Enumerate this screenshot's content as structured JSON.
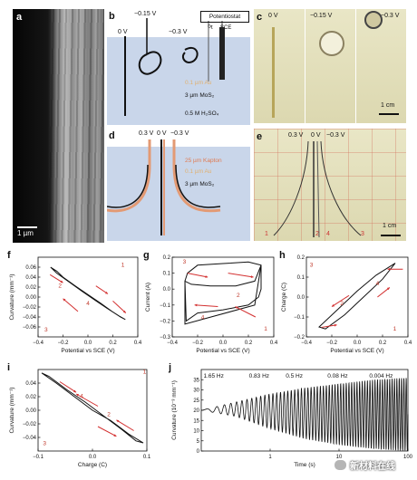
{
  "panels": {
    "a": {
      "label": "a",
      "scalebar": "1 µm"
    },
    "b": {
      "label": "b",
      "v0": "0 V",
      "v1": "−0.15 V",
      "v2": "−0.3 V",
      "potentiostat": "Potentiostat",
      "pt": "Pt",
      "sce": "SCE",
      "au": "0.1 µm Au",
      "mos2": "3 µm MoS₂",
      "electrolyte": "0.5 M H₂SO₄"
    },
    "c": {
      "label": "c",
      "v0": "0 V",
      "v1": "−0.15 V",
      "v2": "−0.3 V",
      "scalebar": "1 cm"
    },
    "d": {
      "label": "d",
      "v1": "0.3 V",
      "v0": "0 V",
      "v2": "−0.3 V",
      "kapton": "25 µm Kapton",
      "au": "0.1 µm Au",
      "mos2": "3 µm MoS₂"
    },
    "e": {
      "label": "e",
      "v1": "0.3 V",
      "v0": "0 V",
      "v2": "−0.3 V",
      "n1": "1",
      "n2": "2",
      "n4": "4",
      "n3": "3",
      "scalebar": "1 cm"
    },
    "f": {
      "label": "f"
    },
    "g": {
      "label": "g"
    },
    "h": {
      "label": "h"
    },
    "i": {
      "label": "i"
    },
    "j": {
      "label": "j"
    }
  },
  "chart_data": [
    {
      "id": "f",
      "type": "line",
      "title": "",
      "xlabel": "Potential vs SCE (V)",
      "ylabel": "Curvature (mm⁻¹)",
      "xlim": [
        -0.4,
        0.4
      ],
      "ylim": [
        -0.08,
        0.08
      ],
      "xticks": [
        "−0.4",
        "−0.2",
        "0.0",
        "0.2",
        "0.4"
      ],
      "yticks": [
        "0.06",
        "0.04",
        "0.02",
        "0.00",
        "−0.02",
        "−0.04",
        "−0.06"
      ],
      "x": [
        -0.3,
        -0.25,
        -0.2,
        -0.1,
        0,
        0.1,
        0.2,
        0.26,
        0.3,
        0.25,
        0.15,
        0.05,
        -0.05,
        -0.15,
        -0.25,
        -0.3
      ],
      "y": [
        0.06,
        0.052,
        0.04,
        0.022,
        0.005,
        -0.012,
        -0.03,
        -0.04,
        -0.045,
        -0.038,
        -0.022,
        -0.005,
        0.012,
        0.03,
        0.048,
        0.06
      ],
      "annotations": [
        "1",
        "2",
        "3",
        "4"
      ]
    },
    {
      "id": "g",
      "type": "line",
      "title": "",
      "xlabel": "Potential vs SCE (V)",
      "ylabel": "Current (A)",
      "xlim": [
        -0.4,
        0.4
      ],
      "ylim": [
        -0.3,
        0.2
      ],
      "xticks": [
        "−0.4",
        "−0.2",
        "0.0",
        "0.2",
        "0.4"
      ],
      "yticks": [
        "0.2",
        "0.1",
        "0.0",
        "−0.1",
        "−0.2",
        "−0.3"
      ],
      "x": [
        0.3,
        0.25,
        0.1,
        -0.1,
        -0.25,
        -0.3,
        -0.29,
        -0.2,
        0,
        0.2,
        0.28,
        0.3,
        0.3,
        0.2,
        0,
        -0.2,
        -0.28,
        -0.3,
        -0.3,
        0.25,
        0.3
      ],
      "y": [
        0.15,
        0.05,
        0.02,
        0.02,
        0.03,
        0.05,
        -0.2,
        -0.15,
        -0.13,
        -0.1,
        -0.05,
        0.0,
        0.15,
        0.17,
        0.16,
        0.15,
        0.1,
        0.05,
        -0.22,
        -0.1,
        0.15
      ],
      "annotations": [
        "1",
        "2",
        "3",
        "4"
      ]
    },
    {
      "id": "h",
      "type": "line",
      "title": "",
      "xlabel": "Potential vs SCE (V)",
      "ylabel": "Charge (C)",
      "xlim": [
        -0.4,
        0.4
      ],
      "ylim": [
        -0.2,
        0.2
      ],
      "xticks": [
        "−0.4",
        "−0.2",
        "0.0",
        "0.2",
        "0.4"
      ],
      "yticks": [
        "0.2",
        "0.1",
        "0.0",
        "−0.1",
        "−0.2"
      ],
      "x": [
        0.3,
        0.15,
        0,
        -0.15,
        -0.3,
        -0.25,
        -0.1,
        0.05,
        0.2,
        0.3
      ],
      "y": [
        0.17,
        0.11,
        0.03,
        -0.06,
        -0.15,
        -0.16,
        -0.09,
        0.0,
        0.09,
        0.17
      ],
      "annotations": [
        "1",
        "2",
        "3",
        "4"
      ]
    },
    {
      "id": "i",
      "type": "line",
      "title": "",
      "xlabel": "Charge (C)",
      "ylabel": "Curvature (mm⁻¹)",
      "xlim": [
        -0.15,
        0.15
      ],
      "ylim": [
        -0.06,
        0.06
      ],
      "xticks": [
        "−0.1",
        "0.0",
        "0.1"
      ],
      "yticks": [
        "0.04",
        "0.02",
        "0.00",
        "−0.02",
        "−0.04"
      ],
      "x": [
        -0.14,
        -0.1,
        -0.05,
        0,
        0.05,
        0.1,
        0.14,
        0.12,
        0.08,
        0.03,
        -0.02,
        -0.07,
        -0.12,
        -0.14
      ],
      "y": [
        0.055,
        0.04,
        0.02,
        0.0,
        -0.015,
        -0.035,
        -0.048,
        -0.045,
        -0.028,
        -0.008,
        0.012,
        0.03,
        0.05,
        0.055
      ],
      "annotations": [
        "1",
        "2",
        "3",
        "4"
      ]
    },
    {
      "id": "j",
      "type": "line",
      "title": "",
      "xlabel": "Time (s)",
      "ylabel": "Curvature (10⁻³ mm⁻¹)",
      "xscale": "log",
      "xlim": [
        0.1,
        100
      ],
      "ylim": [
        0,
        40
      ],
      "xticks": [
        "1",
        "10",
        "100"
      ],
      "yticks": [
        "35",
        "30",
        "25",
        "20",
        "15",
        "10",
        "5",
        "0"
      ],
      "frequency_labels": [
        "1.65 Hz",
        "0.83 Hz",
        "0.5 Hz",
        "0.08 Hz",
        "0.004 Hz"
      ],
      "envelope_top": [
        20,
        24,
        28,
        31,
        33,
        35,
        36
      ],
      "envelope_bottom": [
        20,
        17,
        11,
        6,
        3,
        1,
        0
      ],
      "baseline": 20
    }
  ],
  "watermark": "新材料在线"
}
